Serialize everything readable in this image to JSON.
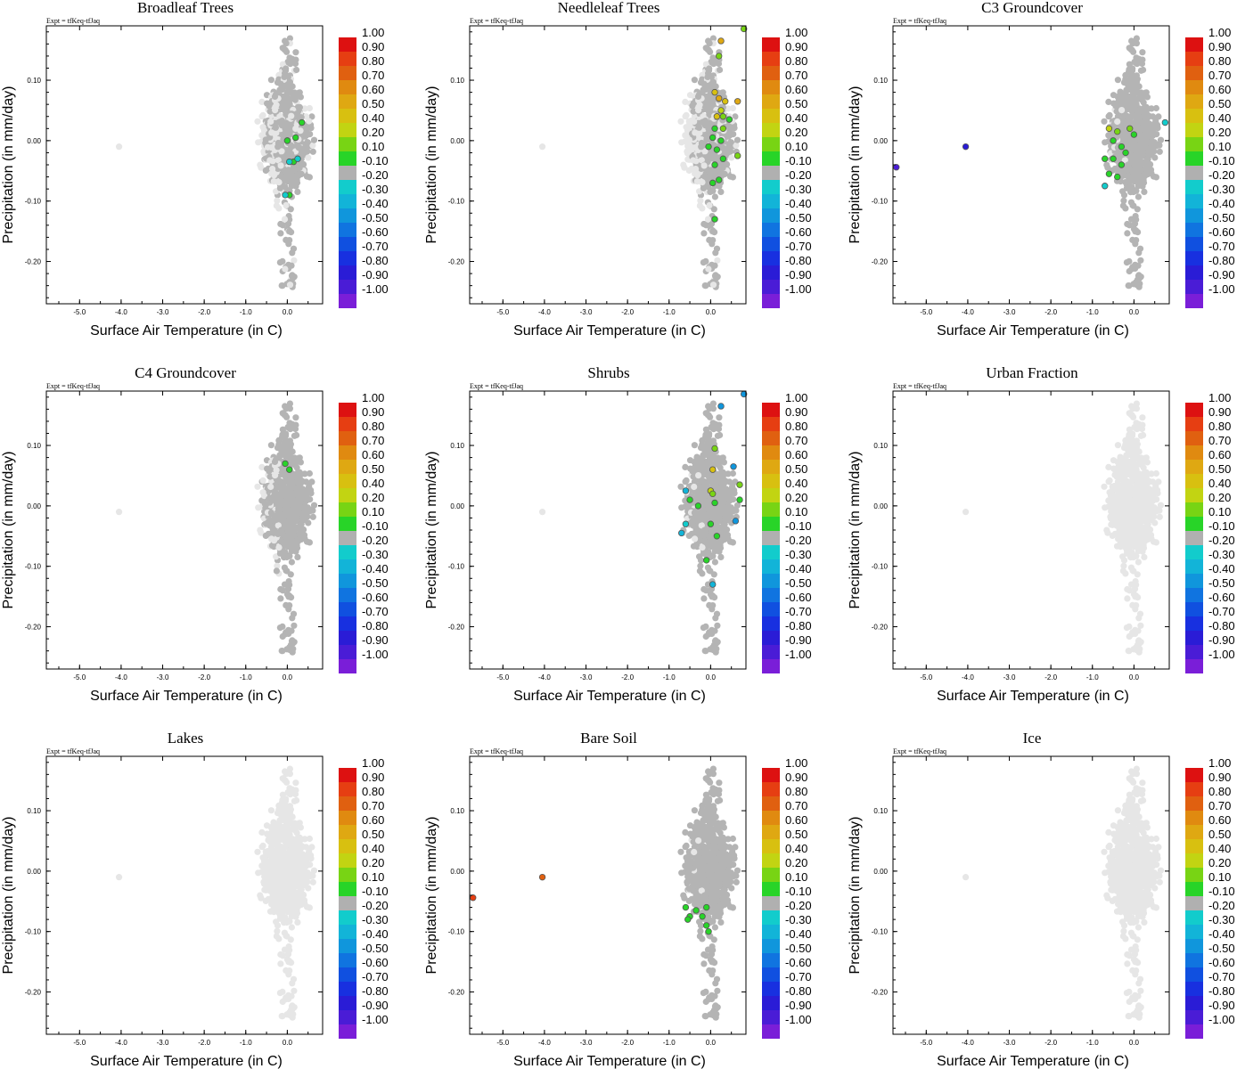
{
  "expt_label": "Expt = tfKeq-tfJaq",
  "colorbar": {
    "labels": [
      "1.00",
      "0.90",
      "0.80",
      "0.70",
      "0.60",
      "0.50",
      "0.40",
      "0.20",
      "0.10",
      "-0.10",
      "-0.20",
      "-0.30",
      "-0.40",
      "-0.50",
      "-0.60",
      "-0.70",
      "-0.80",
      "-0.90",
      "-1.00"
    ],
    "colors": [
      "#dd1111",
      "#e63e12",
      "#e06010",
      "#e08a10",
      "#dfa812",
      "#d8c010",
      "#c2d412",
      "#78d414",
      "#28d428",
      "#b0b0b0",
      "#12cccc",
      "#12b4d8",
      "#1096dc",
      "#1074e0",
      "#1050e0",
      "#1830e0",
      "#2a1cd6",
      "#4a1cd6",
      "#7a1ed8"
    ]
  },
  "chart_data": [
    {
      "type": "scatter",
      "title": "Broadleaf Trees",
      "xlabel": "Surface Air Temperature (in C)",
      "ylabel": "Precipitation (in mm/day)",
      "xlim": [
        -5.8,
        0.85
      ],
      "ylim": [
        -0.27,
        0.19
      ],
      "xticks": [
        "-5.0",
        "-4.0",
        "-3.0",
        "-2.0",
        "-1.0",
        "0.0"
      ],
      "yticks": [
        "0.10",
        "0.00",
        "-0.10",
        "-0.20"
      ],
      "light_outliers": [
        [
          -4.05,
          -0.01
        ]
      ],
      "highlight_points": [
        [
          0.0,
          0.0
        ],
        [
          0.2,
          0.005
        ],
        [
          0.35,
          0.03
        ],
        [
          0.15,
          -0.035
        ],
        [
          0.05,
          -0.035
        ],
        [
          0.25,
          -0.03
        ],
        [
          0.05,
          -0.09
        ],
        [
          -0.05,
          -0.09
        ]
      ],
      "highlight_colors": [
        "#28d428",
        "#28d428",
        "#28d428",
        "#28d428",
        "#12cccc",
        "#12cccc",
        "#28d428",
        "#12cccc"
      ]
    },
    {
      "type": "scatter",
      "title": "Needleleaf Trees",
      "xlabel": "Surface Air Temperature (in C)",
      "ylabel": "Precipitation (in mm/day)",
      "xlim": [
        -5.8,
        0.85
      ],
      "ylim": [
        -0.27,
        0.19
      ],
      "xticks": [
        "-5.0",
        "-4.0",
        "-3.0",
        "-2.0",
        "-1.0",
        "0.0"
      ],
      "yticks": [
        "0.10",
        "0.00",
        "-0.10",
        "-0.20"
      ],
      "light_outliers": [
        [
          -4.05,
          -0.01
        ]
      ],
      "highlight_points": [
        [
          0.25,
          0.165
        ],
        [
          0.8,
          0.185
        ],
        [
          0.2,
          0.14
        ],
        [
          0.1,
          0.08
        ],
        [
          0.2,
          0.07
        ],
        [
          0.35,
          0.065
        ],
        [
          0.65,
          0.065
        ],
        [
          0.25,
          0.05
        ],
        [
          0.15,
          0.04
        ],
        [
          0.3,
          0.04
        ],
        [
          0.45,
          0.035
        ],
        [
          0.1,
          0.02
        ],
        [
          0.3,
          0.02
        ],
        [
          0.05,
          0.005
        ],
        [
          0.25,
          0.0
        ],
        [
          -0.05,
          -0.01
        ],
        [
          0.15,
          -0.015
        ],
        [
          0.65,
          -0.025
        ],
        [
          0.3,
          -0.03
        ],
        [
          0.1,
          -0.04
        ],
        [
          0.05,
          -0.07
        ],
        [
          0.2,
          -0.065
        ],
        [
          0.1,
          -0.13
        ]
      ],
      "highlight_colors": [
        "#dfa812",
        "#78d414",
        "#78d414",
        "#d8c010",
        "#dfa812",
        "#d8c010",
        "#dfa812",
        "#c2d412",
        "#d8c010",
        "#78d414",
        "#28d428",
        "#28d428",
        "#78d414",
        "#28d428",
        "#28d428",
        "#28d428",
        "#28d428",
        "#78d414",
        "#28d428",
        "#28d428",
        "#28d428",
        "#28d428",
        "#28d428"
      ]
    },
    {
      "type": "scatter",
      "title": "C3 Groundcover",
      "xlabel": "Surface Air Temperature (in C)",
      "ylabel": "Precipitation (in mm/day)",
      "xlim": [
        -5.8,
        0.85
      ],
      "ylim": [
        -0.27,
        0.19
      ],
      "xticks": [
        "-5.0",
        "-4.0",
        "-3.0",
        "-2.0",
        "-1.0",
        "0.0"
      ],
      "yticks": [
        "0.10",
        "0.00",
        "-0.10",
        "-0.20"
      ],
      "light_outliers": [],
      "highlight_points": [
        [
          -4.05,
          -0.01
        ],
        [
          -5.72,
          -0.044
        ],
        [
          -0.6,
          0.02
        ],
        [
          -0.4,
          0.015
        ],
        [
          -0.1,
          0.02
        ],
        [
          0.0,
          0.01
        ],
        [
          -0.5,
          0.0
        ],
        [
          -0.3,
          -0.01
        ],
        [
          -0.7,
          -0.03
        ],
        [
          -0.5,
          -0.03
        ],
        [
          -0.3,
          -0.04
        ],
        [
          -0.6,
          -0.055
        ],
        [
          -0.4,
          -0.06
        ],
        [
          -0.7,
          -0.075
        ],
        [
          -0.2,
          -0.02
        ],
        [
          0.75,
          0.03
        ]
      ],
      "highlight_colors": [
        "#2a1cd6",
        "#4a1cd6",
        "#c2d412",
        "#78d414",
        "#78d414",
        "#28d428",
        "#28d428",
        "#28d428",
        "#28d428",
        "#28d428",
        "#28d428",
        "#28d428",
        "#28d428",
        "#12cccc",
        "#28d428",
        "#12cccc"
      ]
    },
    {
      "type": "scatter",
      "title": "C4 Groundcover",
      "xlabel": "Surface Air Temperature (in C)",
      "ylabel": "Precipitation (in mm/day)",
      "xlim": [
        -5.8,
        0.85
      ],
      "ylim": [
        -0.27,
        0.19
      ],
      "xticks": [
        "-5.0",
        "-4.0",
        "-3.0",
        "-2.0",
        "-1.0",
        "0.0"
      ],
      "yticks": [
        "0.10",
        "0.00",
        "-0.10",
        "-0.20"
      ],
      "light_outliers": [
        [
          -4.05,
          -0.01
        ]
      ],
      "highlight_points": [
        [
          -0.05,
          0.07
        ],
        [
          0.05,
          0.06
        ]
      ],
      "highlight_colors": [
        "#28d428",
        "#28d428"
      ]
    },
    {
      "type": "scatter",
      "title": "Shrubs",
      "xlabel": "Surface Air Temperature (in C)",
      "ylabel": "Precipitation (in mm/day)",
      "xlim": [
        -5.8,
        0.85
      ],
      "ylim": [
        -0.27,
        0.19
      ],
      "xticks": [
        "-5.0",
        "-4.0",
        "-3.0",
        "-2.0",
        "-1.0",
        "0.0"
      ],
      "yticks": [
        "0.10",
        "0.00",
        "-0.10",
        "-0.20"
      ],
      "light_outliers": [
        [
          -4.05,
          -0.01
        ]
      ],
      "highlight_points": [
        [
          0.8,
          0.185
        ],
        [
          0.25,
          0.165
        ],
        [
          0.1,
          0.095
        ],
        [
          0.05,
          0.06
        ],
        [
          0.55,
          0.065
        ],
        [
          -0.6,
          0.025
        ],
        [
          0.0,
          0.025
        ],
        [
          0.05,
          0.02
        ],
        [
          0.7,
          0.035
        ],
        [
          0.7,
          0.01
        ],
        [
          0.1,
          0.005
        ],
        [
          -0.5,
          0.01
        ],
        [
          -0.3,
          0.0
        ],
        [
          0.6,
          -0.025
        ],
        [
          -0.6,
          -0.03
        ],
        [
          0.0,
          -0.03
        ],
        [
          -0.7,
          -0.045
        ],
        [
          0.15,
          -0.05
        ],
        [
          -0.1,
          -0.09
        ],
        [
          0.05,
          -0.13
        ]
      ],
      "highlight_colors": [
        "#1096dc",
        "#1096dc",
        "#78d414",
        "#d8c010",
        "#1096dc",
        "#12b4d8",
        "#c2d412",
        "#78d414",
        "#78d414",
        "#28d428",
        "#28d428",
        "#28d428",
        "#28d428",
        "#1096dc",
        "#12cccc",
        "#28d428",
        "#12b4d8",
        "#28d428",
        "#28d428",
        "#12b4d8"
      ]
    },
    {
      "type": "scatter",
      "title": "Urban Fraction",
      "xlabel": "Surface Air Temperature (in C)",
      "ylabel": "Precipitation (in mm/day)",
      "xlim": [
        -5.8,
        0.85
      ],
      "ylim": [
        -0.27,
        0.19
      ],
      "xticks": [
        "-5.0",
        "-4.0",
        "-3.0",
        "-2.0",
        "-1.0",
        "0.0"
      ],
      "yticks": [
        "0.10",
        "0.00",
        "-0.10",
        "-0.20"
      ],
      "light_outliers": [
        [
          -4.05,
          -0.01
        ]
      ],
      "highlight_points": [],
      "highlight_colors": []
    },
    {
      "type": "scatter",
      "title": "Lakes",
      "xlabel": "Surface Air Temperature (in C)",
      "ylabel": "Precipitation (in mm/day)",
      "xlim": [
        -5.8,
        0.85
      ],
      "ylim": [
        -0.27,
        0.19
      ],
      "xticks": [
        "-5.0",
        "-4.0",
        "-3.0",
        "-2.0",
        "-1.0",
        "0.0"
      ],
      "yticks": [
        "0.10",
        "0.00",
        "-0.10",
        "-0.20"
      ],
      "light_outliers": [
        [
          -4.05,
          -0.01
        ]
      ],
      "highlight_points": [],
      "highlight_colors": []
    },
    {
      "type": "scatter",
      "title": "Bare Soil",
      "xlabel": "Surface Air Temperature (in C)",
      "ylabel": "Precipitation (in mm/day)",
      "xlim": [
        -5.8,
        0.85
      ],
      "ylim": [
        -0.27,
        0.19
      ],
      "xticks": [
        "-5.0",
        "-4.0",
        "-3.0",
        "-2.0",
        "-1.0",
        "0.0"
      ],
      "yticks": [
        "0.10",
        "0.00",
        "-0.10",
        "-0.20"
      ],
      "light_outliers": [],
      "highlight_points": [
        [
          -4.05,
          -0.01
        ],
        [
          -5.72,
          -0.044
        ],
        [
          -0.6,
          -0.06
        ],
        [
          -0.5,
          -0.075
        ],
        [
          -0.35,
          -0.065
        ],
        [
          -0.1,
          -0.06
        ],
        [
          -0.2,
          -0.075
        ],
        [
          -0.1,
          -0.09
        ],
        [
          -0.05,
          -0.1
        ],
        [
          -0.55,
          -0.08
        ]
      ],
      "highlight_colors": [
        "#e06010",
        "#e63e12",
        "#28d428",
        "#28d428",
        "#28d428",
        "#28d428",
        "#28d428",
        "#28d428",
        "#28d428",
        "#28d428"
      ]
    },
    {
      "type": "scatter",
      "title": "Ice",
      "xlabel": "Surface Air Temperature (in C)",
      "ylabel": "Precipitation (in mm/day)",
      "xlim": [
        -5.8,
        0.85
      ],
      "ylim": [
        -0.27,
        0.19
      ],
      "xticks": [
        "-5.0",
        "-4.0",
        "-3.0",
        "-2.0",
        "-1.0",
        "0.0"
      ],
      "yticks": [
        "0.10",
        "0.00",
        "-0.10",
        "-0.20"
      ],
      "light_outliers": [
        [
          -4.05,
          -0.01
        ]
      ],
      "highlight_points": [],
      "highlight_colors": []
    }
  ]
}
